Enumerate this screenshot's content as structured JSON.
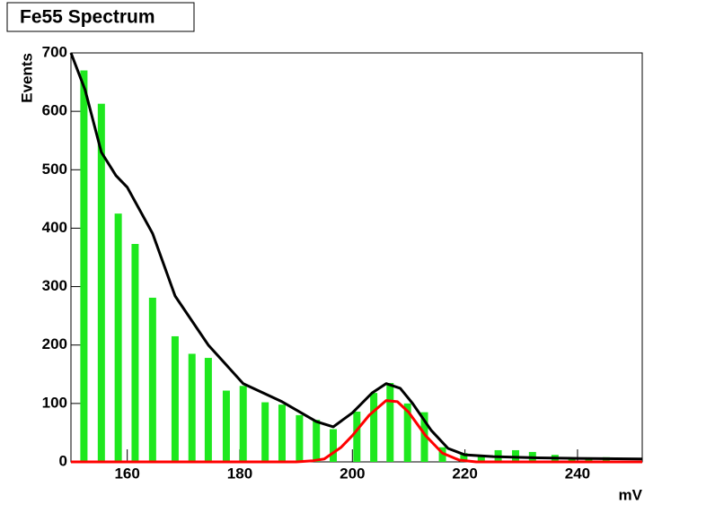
{
  "chart_data": {
    "type": "bar",
    "title": "Fe55 Spectrum",
    "xlabel": "mV",
    "ylabel": "Events",
    "x": [
      152.3,
      155.4,
      158.4,
      161.4,
      164.5,
      168.5,
      171.5,
      174.4,
      177.6,
      180.6,
      184.5,
      187.5,
      190.6,
      193.6,
      196.6,
      200.8,
      203.8,
      206.7,
      209.8,
      212.8,
      216,
      219.8,
      222.9,
      225.9,
      229,
      232,
      236,
      239,
      242,
      245.1
    ],
    "values": [
      670,
      613,
      425,
      373,
      281,
      215,
      185,
      178,
      122,
      130,
      102,
      98,
      80,
      72,
      56,
      86,
      118,
      135,
      100,
      85,
      25,
      15,
      12,
      20,
      20,
      17,
      12,
      7,
      4,
      8
    ],
    "color": "#1ee81e",
    "lines": [
      {
        "color": "#000000",
        "x": [
          150,
          152.5,
          155.4,
          158,
          160,
          164.5,
          168.5,
          174.4,
          180.6,
          187.5,
          193.6,
          196.6,
          200,
          203.5,
          206,
          208.5,
          210.7,
          214,
          217,
          220,
          225,
          233,
          240,
          251.5
        ],
        "values": [
          700,
          637,
          530,
          490,
          470,
          391,
          284,
          200,
          134,
          103,
          69,
          60,
          84,
          118,
          134,
          126,
          100,
          54,
          23,
          12,
          9,
          7,
          6,
          5
        ]
      },
      {
        "color": "#ff0000",
        "x": [
          150,
          190,
          193,
          195,
          198,
          200,
          203,
          206,
          208,
          210,
          213,
          216,
          219,
          222,
          251.5
        ],
        "values": [
          0,
          0,
          2,
          5,
          25,
          45,
          80,
          105,
          103,
          85,
          45,
          15,
          3,
          0,
          0
        ]
      }
    ],
    "xlim": [
      150,
      251.5
    ],
    "ylim": [
      0,
      700
    ],
    "xticks": [
      160,
      180,
      200,
      220,
      240
    ],
    "yticks": [
      0,
      100,
      200,
      300,
      400,
      500,
      600,
      700
    ]
  }
}
